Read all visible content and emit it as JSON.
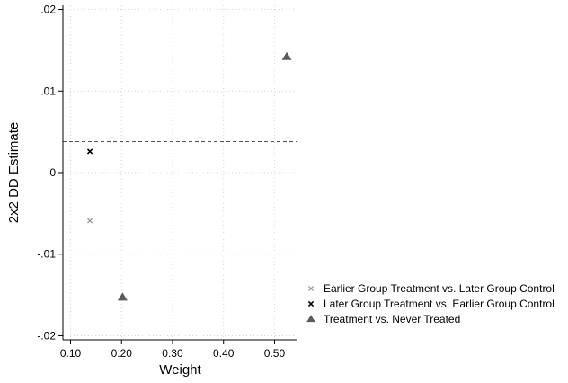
{
  "chart_data": {
    "type": "scatter",
    "title": "",
    "xlabel": "Weight",
    "ylabel": "2x2 DD Estimate",
    "xlim": [
      0.085,
      0.545
    ],
    "ylim": [
      -0.0205,
      0.0205
    ],
    "xticks": [
      0.1,
      0.2,
      0.3,
      0.4,
      0.5
    ],
    "xtick_labels": [
      "0.10",
      "0.20",
      "0.30",
      "0.40",
      "0.50"
    ],
    "yticks": [
      0.02,
      0.01,
      0,
      -0.01,
      -0.02
    ],
    "ytick_labels": [
      ".02",
      ".01",
      "0",
      "-.01",
      "-.02"
    ],
    "grid": true,
    "legend_position": "right",
    "reference_line": {
      "y": 0.0038,
      "style": "dashed"
    },
    "series": [
      {
        "name": "Earlier Group Treatment vs. Later Group Control",
        "marker": "x",
        "color": "#8c8c8c",
        "points": [
          {
            "x": 0.138,
            "y": -0.0059
          }
        ]
      },
      {
        "name": "Later Group Treatment vs. Earlier Group Control",
        "marker": "x",
        "color": "#000000",
        "points": [
          {
            "x": 0.138,
            "y": 0.0026
          }
        ]
      },
      {
        "name": "Treatment vs. Never Treated",
        "marker": "triangle",
        "color": "#5a5a5a",
        "points": [
          {
            "x": 0.202,
            "y": -0.0153
          },
          {
            "x": 0.524,
            "y": 0.0142
          }
        ]
      }
    ]
  }
}
